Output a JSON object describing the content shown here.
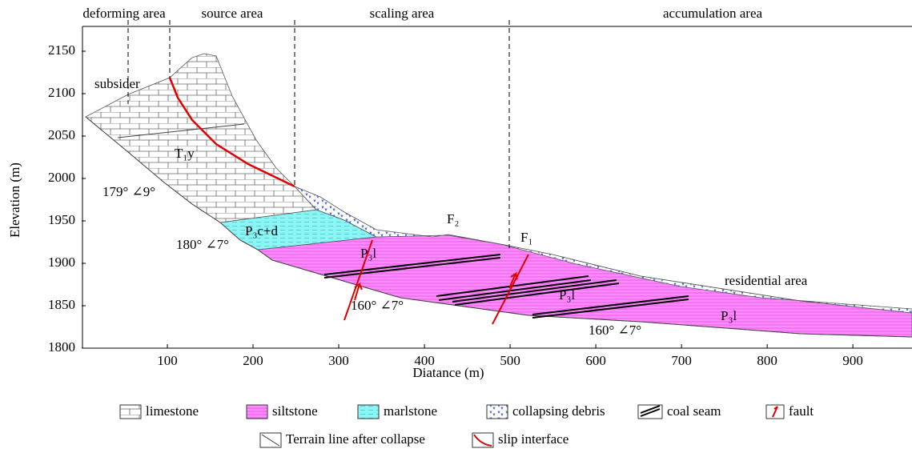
{
  "axes": {
    "xlabel": "Diatance (m)",
    "ylabel": "Elevation (m)",
    "xlim": [
      0,
      969
    ],
    "ylim": [
      1800,
      2150
    ],
    "xticks": [
      100,
      200,
      300,
      400,
      500,
      600,
      700,
      800,
      900
    ],
    "yticks": [
      1800,
      1850,
      1900,
      1950,
      2000,
      2050,
      2100,
      2150
    ]
  },
  "zones": [
    "deforming area",
    "source area",
    "scaling area",
    "accumulation area"
  ],
  "labels": {
    "subsider": "subsider",
    "t1y": "T₁y",
    "p3cd": "P₃c+d",
    "p3l_a": "P₃l",
    "p3l_b": "P₃l",
    "p3l_c": "P₃l",
    "f2": "F₂",
    "f1": "F₁",
    "residential": "residential area",
    "att_a": "179° ∠9°",
    "att_b": "180° ∠7°",
    "att_c": "160° ∠7°",
    "att_d": "160° ∠7°"
  },
  "legend": [
    "limestone",
    "siltstone",
    "marlstone",
    "collapsing debris",
    "coal seam",
    "fault",
    "Terrain line after collapse",
    "slip interface"
  ]
}
